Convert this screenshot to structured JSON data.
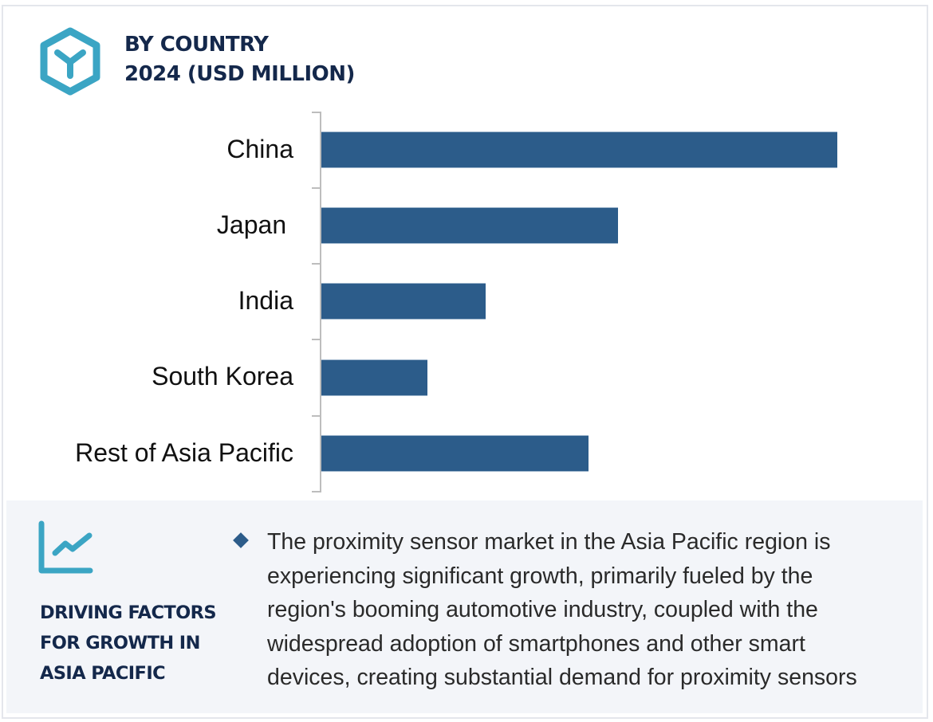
{
  "header": {
    "icon": "hexagon-y-icon",
    "title_line1": "BY COUNTRY",
    "title_line2": "2024 (USD MILLION)"
  },
  "colors": {
    "bar": "#2c5c8a",
    "accent_teal": "#3ba5c4",
    "title_navy": "#14284b",
    "panel_bg": "#f3f5f9"
  },
  "chart_data": {
    "type": "bar",
    "orientation": "horizontal",
    "title": "BY COUNTRY 2024 (USD MILLION)",
    "categories": [
      "China",
      "Japan ",
      "India",
      "South Korea",
      "Rest of Asia Pacific"
    ],
    "values": [
      647,
      372,
      206,
      133,
      335
    ],
    "value_note": "Relative bar lengths in pixels; no numeric axis or data labels shown",
    "xlabel": "",
    "ylabel": "",
    "grid": false,
    "legend": null
  },
  "panel": {
    "icon": "line-chart-trend-icon",
    "title_lines": [
      "DRIVING FACTORS",
      "FOR GROWTH IN",
      "ASIA PACIFIC"
    ],
    "bullet_icon": "diamond-bullet-icon",
    "description_lines": [
      "The proximity sensor market in the Asia Pacific region is",
      "experiencing significant growth, primarily fueled by the",
      "region's booming automotive industry, coupled with the",
      "widespread adoption of smartphones and other smart",
      "devices, creating substantial demand for proximity sensors"
    ]
  }
}
